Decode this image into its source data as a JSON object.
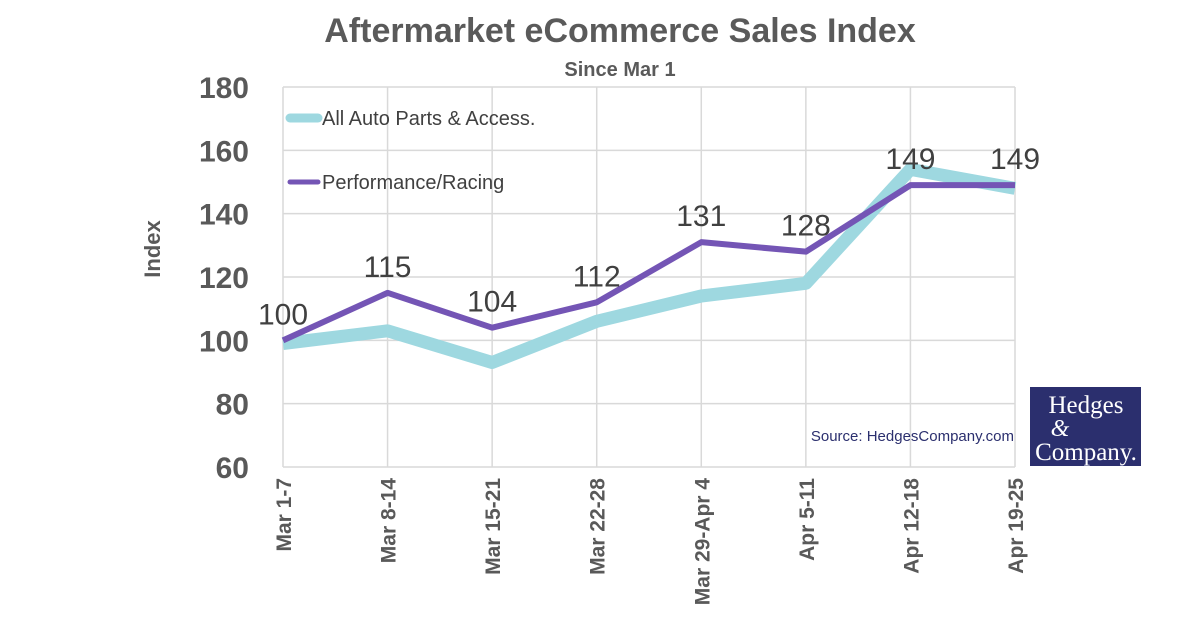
{
  "chart_data": {
    "type": "line",
    "title": "Aftermarket eCommerce Sales Index",
    "subtitle": "Since Mar 1",
    "xlabel": "",
    "ylabel": "Index",
    "ylim": [
      60,
      180
    ],
    "yticks": [
      60,
      80,
      100,
      120,
      140,
      160,
      180
    ],
    "grid": true,
    "legend_position": "top-left",
    "categories": [
      "Mar 1-7",
      "Mar 8-14",
      "Mar 15-21",
      "Mar 22-28",
      "Mar 29-Apr 4",
      "Apr 5-11",
      "Apr 12-18",
      "Apr 19-25"
    ],
    "series": [
      {
        "name": "All Auto Parts & Access.",
        "color": "#9ed8e0",
        "values": [
          99,
          103,
          93,
          106,
          114,
          118,
          154,
          148
        ]
      },
      {
        "name": "Performance/Racing",
        "color": "#7455b5",
        "values": [
          100,
          115,
          104,
          112,
          131,
          128,
          149,
          149
        ],
        "data_labels": [
          "100",
          "115",
          "104",
          "112",
          "131",
          "128",
          "149",
          "149"
        ]
      }
    ]
  },
  "source": "Source: HedgesCompany.com",
  "logo": {
    "line1": "Hedges",
    "line2": "&",
    "line3": "Company.",
    "color": "#2b2f6e"
  }
}
